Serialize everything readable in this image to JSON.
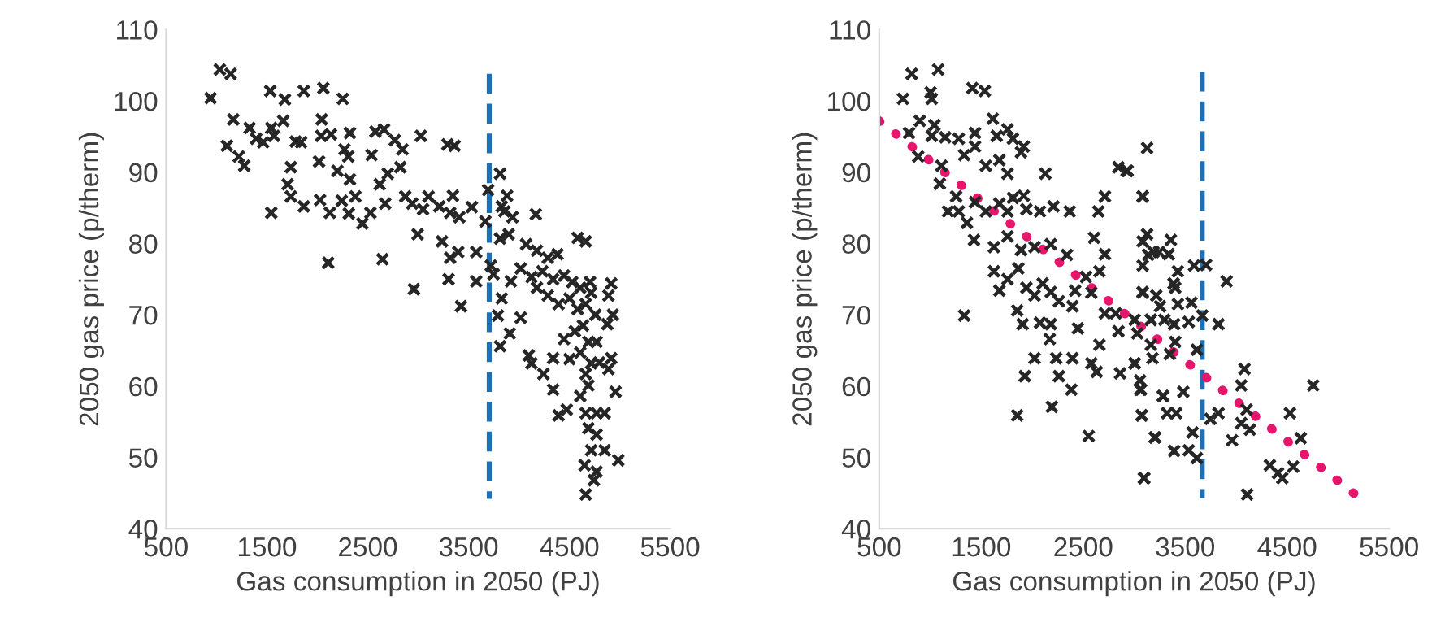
{
  "chart_data": [
    {
      "type": "scatter",
      "xlabel": "Gas consumption in 2050 (PJ)",
      "ylabel": "2050 gas price (p/therm)",
      "xlim": [
        500,
        5500
      ],
      "xticks": [
        500,
        1500,
        2500,
        3500,
        4500,
        5500
      ],
      "ylim": [
        40,
        110
      ],
      "yticks": [
        40,
        50,
        60,
        70,
        80,
        90,
        100,
        110
      ],
      "grid": false,
      "series": [
        {
          "marker": "cross",
          "color": "#262626",
          "x": [
            1033,
            1140,
            941,
            1533,
            1678,
            1866,
            2060,
            2253,
            1167,
            1328,
            1543,
            1662,
            2043,
            1103,
            1221,
            1275,
            1393,
            1463,
            1570,
            1785,
            1839,
            2038,
            2135,
            2323,
            2269,
            2307,
            2538,
            2576,
            2662,
            2769,
            2845,
            3027,
            3291,
            3361,
            1737,
            1705,
            1737,
            1866,
            1543,
            2017,
            2027,
            2124,
            2199,
            2242,
            2323,
            2312,
            2377,
            2447,
            2527,
            2619,
            2673,
            2699,
            2823,
            2872,
            2941,
            3049,
            3103,
            3210,
            3345,
            3318,
            3409,
            3533,
            2995,
            3237,
            3318,
            3398,
            3576,
            2108,
            2646,
            2958,
            3302,
            3576,
            3425,
            3812,
            3694,
            3882,
            4167,
            3829,
            3855,
            3936,
            3667,
            3721,
            3812,
            3898,
            4071,
            4178,
            4286,
            4382,
            4581,
            4662,
            4017,
            4124,
            4232,
            4339,
            4447,
            4528,
            4608,
            4705,
            4915,
            4888,
            4931,
            4877,
            4178,
            4286,
            4393,
            4501,
            4581,
            4662,
            4716,
            4759,
            4635,
            4554,
            4447,
            4689,
            4770,
            4608,
            4716,
            4796,
            4915,
            4888,
            4958,
            4097,
            4124,
            4339,
            4501,
            4243,
            4339,
            4662,
            4689,
            4608,
            4393,
            4474,
            4662,
            4770,
            4850,
            4689,
            4770,
            4716,
            4850,
            4985,
            4651,
            4770,
            4743,
            4662,
            4017,
            3909,
            3812,
            3791,
            3829,
            3920,
            3748
          ],
          "values": [
            104.4,
            103.8,
            100.4,
            101.4,
            100.2,
            101.4,
            101.8,
            100.3,
            97.4,
            96.2,
            96.2,
            97.2,
            97.4,
            93.7,
            92.2,
            90.9,
            94.7,
            94.2,
            95.1,
            94.3,
            94.2,
            95.1,
            95.3,
            95.5,
            93.2,
            92.2,
            92.4,
            95.7,
            96.0,
            94.5,
            93.2,
            95.1,
            93.9,
            93.7,
            90.7,
            88.3,
            86.6,
            85.2,
            84.3,
            91.5,
            86.1,
            84.3,
            90.2,
            86.0,
            89.0,
            84.2,
            86.6,
            82.8,
            84.3,
            88.3,
            85.6,
            89.8,
            90.7,
            86.6,
            85.6,
            84.8,
            86.6,
            85.2,
            86.7,
            84.3,
            83.7,
            85.1,
            81.3,
            80.3,
            78.0,
            78.8,
            78.8,
            77.3,
            77.8,
            73.6,
            75.0,
            74.7,
            71.2,
            89.8,
            87.5,
            86.7,
            84.1,
            85.2,
            84.5,
            83.7,
            83.1,
            76.9,
            80.7,
            81.3,
            79.9,
            79.0,
            78.0,
            78.5,
            80.8,
            80.3,
            76.5,
            75.3,
            76.1,
            75.0,
            75.5,
            74.6,
            73.8,
            74.6,
            74.4,
            72.7,
            70.0,
            68.7,
            73.8,
            72.7,
            71.5,
            72.3,
            70.8,
            71.5,
            73.1,
            70.0,
            68.5,
            67.7,
            66.6,
            66.2,
            66.2,
            64.7,
            63.2,
            63.3,
            63.9,
            62.4,
            59.2,
            64.3,
            63.2,
            63.9,
            63.8,
            61.7,
            59.5,
            61.7,
            60.1,
            58.6,
            55.9,
            56.7,
            56.2,
            56.2,
            56.2,
            54.1,
            53.2,
            51.0,
            51.0,
            49.6,
            48.9,
            48.0,
            46.8,
            44.8,
            69.6,
            67.4,
            65.6,
            69.9,
            72.3,
            74.7,
            75.7
          ]
        },
        {
          "type": "line",
          "color": "#1f6fb4",
          "line_style": "dashed",
          "x": [
            3705,
            3705
          ],
          "values": [
            103.8,
            44.2
          ]
        }
      ]
    },
    {
      "type": "scatter",
      "xlabel": "Gas consumption in 2050 (PJ)",
      "ylabel": "2050 gas price (p/therm)",
      "xlim": [
        500,
        5500
      ],
      "xticks": [
        500,
        1500,
        2500,
        3500,
        4500,
        5500
      ],
      "ylim": [
        40,
        110
      ],
      "yticks": [
        40,
        50,
        60,
        70,
        80,
        90,
        100,
        110
      ],
      "grid": false,
      "series": [
        {
          "marker": "cross",
          "color": "#262626",
          "x": [
            818,
            1078,
            733,
            1004,
            1015,
            1413,
            1535,
            898,
            1041,
            792,
            1015,
            1147,
            1280,
            1439,
            1614,
            1652,
            1758,
            1811,
            882,
            1110,
            1333,
            1439,
            1545,
            1678,
            1758,
            1890,
            1917,
            2129,
            1094,
            1174,
            1254,
            1280,
            1360,
            1439,
            1545,
            1678,
            1758,
            1811,
            1917,
            1943,
            2076,
            2209,
            2368,
            2649,
            2713,
            2846,
            2925,
            3084,
            1429,
            1625,
            1758,
            1890,
            2023,
            2182,
            2341,
            2527,
            2607,
            2713,
            2660,
            1625,
            1678,
            1758,
            1864,
            1943,
            2023,
            2103,
            2182,
            2262,
            2421,
            2580,
            2713,
            2819,
            3084,
            3138,
            3244,
            1333,
            1853,
            1906,
            2076,
            2182,
            2172,
            2395,
            2448,
            2660,
            2846,
            3005,
            3164,
            2023,
            2235,
            2395,
            1927,
            2262,
            2384,
            2633,
            2580,
            2862,
            3005,
            3068,
            3281,
            1853,
            2193,
            2554,
            3074,
            3207,
            3100,
            3127,
            2936,
            3084,
            3127,
            3084,
            3360,
            3190,
            3339,
            3084,
            3429,
            3588,
            3705,
            3387,
            3907,
            3084,
            3217,
            3403,
            3254,
            3429,
            3562,
            3668,
            3827,
            3164,
            3297,
            3392,
            3535,
            3031,
            3164,
            3403,
            3615,
            3350,
            3005,
            3180,
            3058,
            3058,
            3286,
            3482,
            4082,
            4050,
            4756,
            3074,
            3323,
            3413,
            3748,
            3827,
            4103,
            4050,
            4135,
            4528,
            3201,
            3573,
            3960,
            3392,
            3535,
            3615,
            4634,
            4331,
            4411,
            4453,
            4560,
            3095,
            4108
          ],
          "values": [
            103.8,
            104.4,
            100.3,
            101.2,
            100.3,
            101.8,
            101.4,
            97.2,
            96.6,
            95.5,
            95.1,
            94.9,
            94.7,
            95.5,
            97.5,
            95.1,
            96.0,
            94.7,
            92.2,
            90.9,
            92.4,
            93.6,
            90.9,
            91.7,
            89.8,
            92.8,
            93.6,
            89.8,
            88.4,
            84.5,
            86.6,
            84.5,
            82.9,
            85.8,
            84.5,
            85.6,
            84.5,
            86.4,
            86.7,
            84.8,
            84.5,
            85.2,
            84.5,
            84.5,
            86.6,
            90.7,
            90.2,
            86.6,
            80.5,
            79.5,
            81.0,
            79.1,
            79.5,
            79.9,
            78.4,
            75.3,
            80.8,
            78.5,
            76.1,
            76.1,
            73.4,
            75.0,
            76.5,
            73.8,
            72.7,
            74.4,
            73.2,
            71.9,
            73.4,
            73.1,
            70.2,
            70.2,
            73.1,
            78.4,
            78.8,
            69.9,
            70.6,
            68.7,
            68.9,
            68.7,
            66.6,
            71.2,
            68.1,
            65.8,
            67.7,
            69.3,
            69.3,
            63.9,
            63.9,
            63.9,
            61.4,
            61.4,
            59.5,
            62.0,
            63.2,
            61.8,
            63.2,
            59.5,
            58.6,
            55.9,
            57.1,
            53.0,
            55.9,
            52.8,
            47.1,
            93.4,
            90.2,
            86.6,
            81.3,
            80.3,
            80.5,
            78.8,
            78.5,
            76.9,
            76.1,
            76.9,
            77.0,
            74.4,
            74.7,
            73.2,
            72.7,
            73.8,
            71.2,
            71.5,
            71.7,
            69.9,
            68.7,
            69.3,
            69.3,
            68.7,
            69.0,
            67.4,
            65.8,
            66.2,
            65.1,
            64.5,
            63.2,
            63.9,
            60.8,
            59.5,
            58.6,
            59.2,
            62.4,
            60.1,
            60.1,
            55.9,
            56.2,
            56.2,
            55.4,
            56.2,
            56.7,
            54.8,
            53.9,
            56.2,
            52.8,
            53.5,
            52.4,
            50.9,
            51.0,
            49.9,
            52.7,
            48.9,
            47.8,
            47.1,
            48.7,
            47.1,
            44.8
          ]
        },
        {
          "type": "line",
          "color": "#1f6fb4",
          "line_style": "dashed",
          "x": [
            3668,
            3668
          ],
          "values": [
            104.1,
            44.3
          ]
        },
        {
          "type": "line",
          "color": "#e8156c",
          "line_style": "dotted",
          "x": [
            500,
            5170
          ],
          "values": [
            97.2,
            44.8
          ]
        }
      ]
    }
  ]
}
